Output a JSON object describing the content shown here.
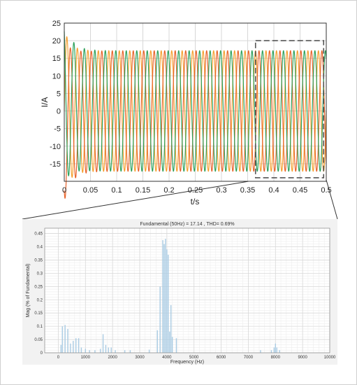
{
  "chart_data": [
    {
      "type": "line",
      "title": "",
      "xlabel": "t/s",
      "ylabel": "I/A",
      "xlim": [
        0,
        0.5
      ],
      "ylim": [
        -20,
        25
      ],
      "xticks": [
        "0",
        "0.05",
        "0.1",
        "0.15",
        "0.2",
        "0.25",
        "0.3",
        "0.35",
        "0.4",
        "0.45",
        "0.5"
      ],
      "yticks": [
        "-15",
        "-10",
        "-5",
        "0",
        "5",
        "10",
        "15",
        "20",
        "25"
      ],
      "grid": true,
      "frequency_hz": 50,
      "steady_amplitude": 17.14,
      "series": [
        {
          "color": "#f5a030",
          "phase_deg": 0
        },
        {
          "color": "#e8632a",
          "phase_deg": -120
        },
        {
          "color": "#2ca05a",
          "phase_deg": 120
        }
      ],
      "zoom_window": {
        "x": [
          0.365,
          0.495
        ],
        "y": [
          -19,
          20
        ]
      }
    },
    {
      "type": "bar",
      "title": "Fundamental (50Hz) = 17.14 , THD= 0.69%",
      "xlabel": "Frequency (Hz)",
      "ylabel": "Mag (% of Fundamental)",
      "xlim": [
        -500,
        10000
      ],
      "ylim": [
        0,
        0.47
      ],
      "xticks": [
        "0",
        "1000",
        "2000",
        "3000",
        "4000",
        "5000",
        "6000",
        "7000",
        "8000",
        "9000",
        "10000"
      ],
      "yticks": [
        "0",
        "0.05",
        "0.1",
        "0.15",
        "0.2",
        "0.25",
        "0.3",
        "0.35",
        "0.4",
        "0.45"
      ],
      "grid": true,
      "color": "#a9cbe3",
      "x": [
        100,
        150,
        250,
        350,
        450,
        550,
        650,
        750,
        850,
        1000,
        1150,
        1350,
        1550,
        1650,
        1750,
        1850,
        1950,
        2100,
        2450,
        2650,
        3350,
        3650,
        3750,
        3850,
        3900,
        3950,
        4000,
        4050,
        4100,
        4150,
        4200,
        4350,
        7450,
        7850,
        7950,
        8000,
        8050,
        8150
      ],
      "values": [
        0.03,
        0.1,
        0.105,
        0.09,
        0.035,
        0.045,
        0.055,
        0.055,
        0.02,
        0.015,
        0.01,
        0.01,
        0.015,
        0.07,
        0.03,
        0.02,
        0.02,
        0.01,
        0.01,
        0.01,
        0.012,
        0.085,
        0.25,
        0.425,
        0.41,
        0.43,
        0.39,
        0.37,
        0.08,
        0.18,
        0.06,
        0.055,
        0.01,
        0.01,
        0.02,
        0.035,
        0.02,
        0.01
      ]
    }
  ]
}
